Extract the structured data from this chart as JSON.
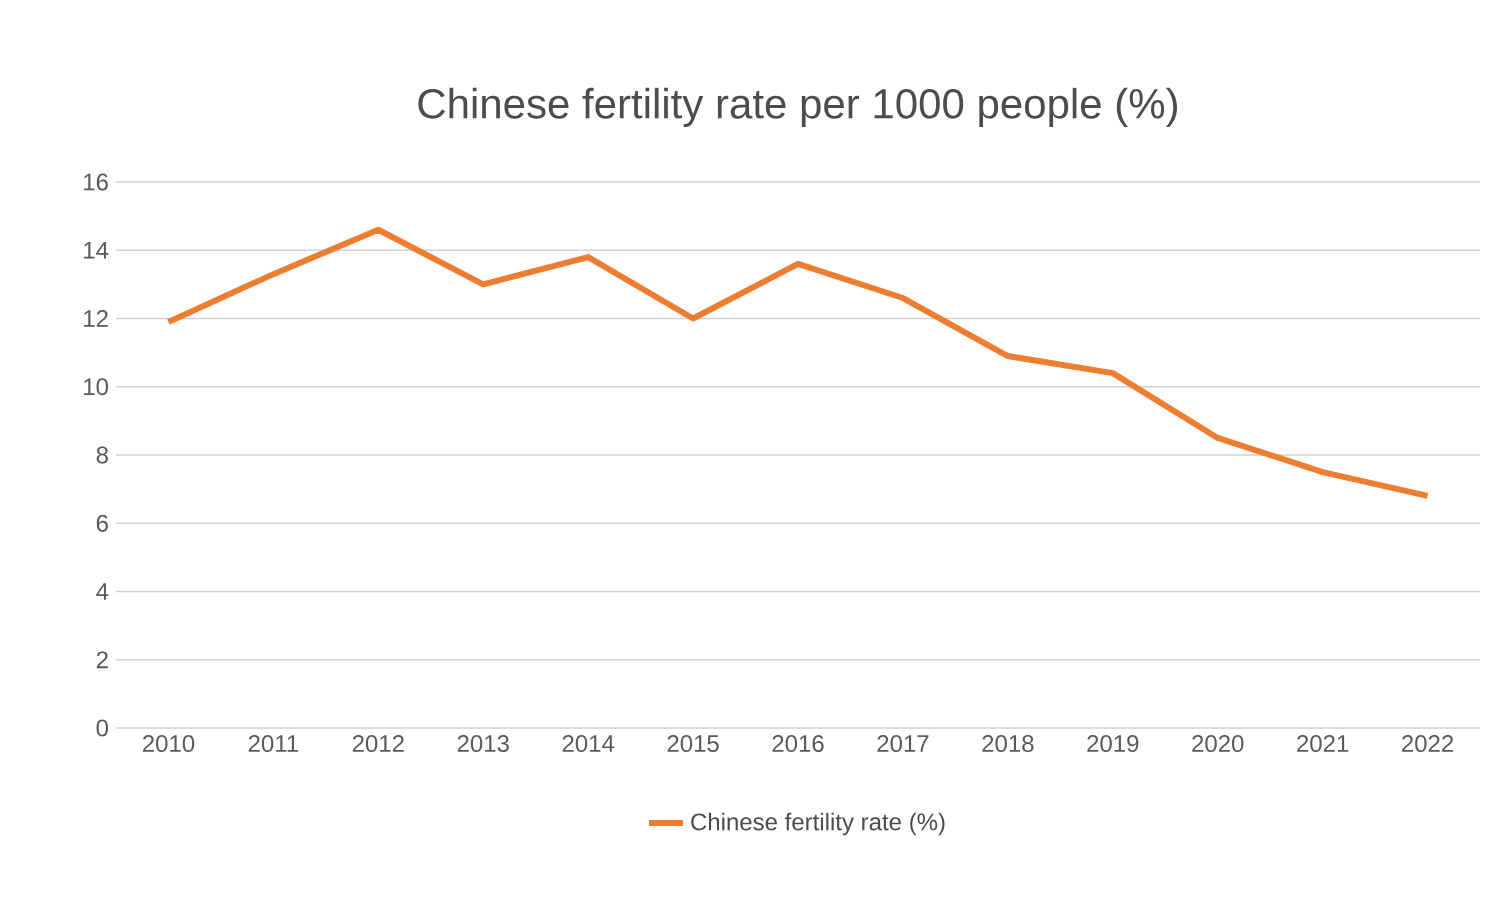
{
  "chart_data": {
    "type": "line",
    "title": "Chinese fertility rate per 1000 people (%)",
    "categories": [
      "2010",
      "2011",
      "2012",
      "2013",
      "2014",
      "2015",
      "2016",
      "2017",
      "2018",
      "2019",
      "2020",
      "2021",
      "2022"
    ],
    "series": [
      {
        "name": "Chinese fertility rate (%)",
        "color": "#ed7d31",
        "values": [
          11.9,
          13.3,
          14.6,
          13.0,
          13.8,
          12.0,
          13.6,
          12.6,
          10.9,
          10.4,
          8.5,
          7.5,
          6.8
        ]
      }
    ],
    "ylim": [
      0,
      16
    ],
    "yticks": [
      0,
      2,
      4,
      6,
      8,
      10,
      12,
      14,
      16
    ],
    "grid": "y",
    "legend": "bottom",
    "marker": "none",
    "line_style": "solid"
  }
}
